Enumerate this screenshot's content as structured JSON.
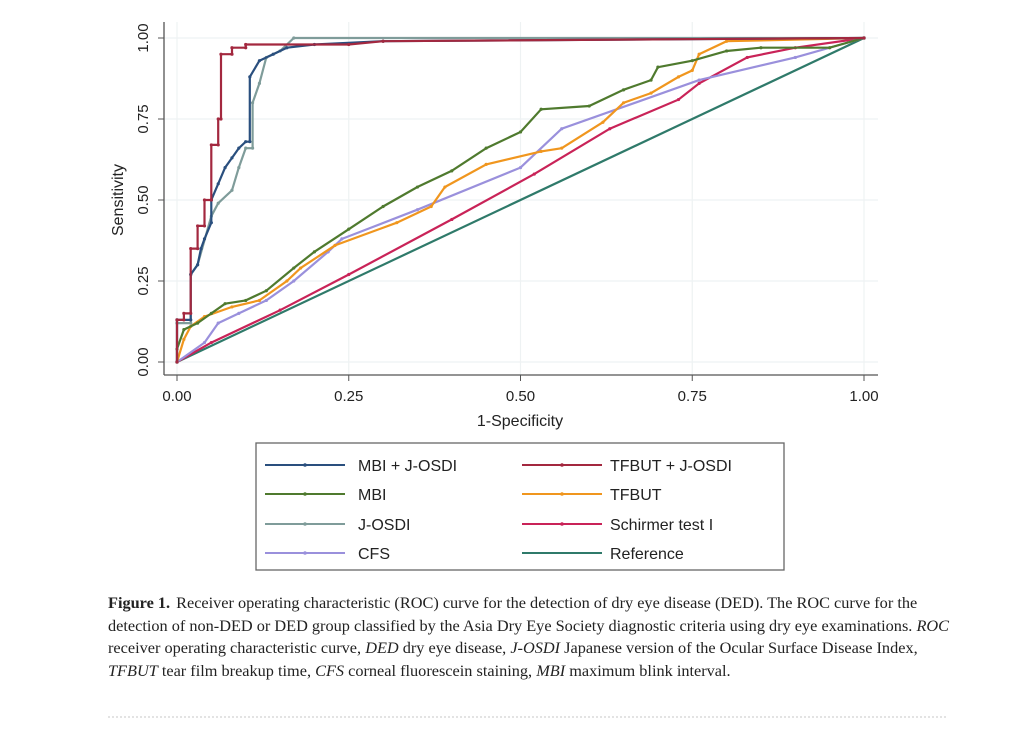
{
  "chart_data": {
    "type": "line",
    "xlabel": "1-Specificity",
    "ylabel": "Sensitivity",
    "xlim": [
      0,
      1
    ],
    "ylim": [
      0,
      1
    ],
    "xticks": [
      "0.00",
      "0.25",
      "0.50",
      "0.75",
      "1.00"
    ],
    "yticks": [
      "0.00",
      "0.25",
      "0.50",
      "0.75",
      "1.00"
    ],
    "grid": true,
    "legend_position": "bottom",
    "series": [
      {
        "name": "MBI + J-OSDI",
        "color": "#2a4f7e",
        "points": [
          [
            0,
            0
          ],
          [
            0,
            0.13
          ],
          [
            0.02,
            0.13
          ],
          [
            0.02,
            0.27
          ],
          [
            0.03,
            0.3
          ],
          [
            0.035,
            0.35
          ],
          [
            0.04,
            0.38
          ],
          [
            0.05,
            0.43
          ],
          [
            0.05,
            0.5
          ],
          [
            0.06,
            0.55
          ],
          [
            0.07,
            0.6
          ],
          [
            0.08,
            0.63
          ],
          [
            0.09,
            0.66
          ],
          [
            0.1,
            0.68
          ],
          [
            0.106,
            0.68
          ],
          [
            0.106,
            0.88
          ],
          [
            0.12,
            0.93
          ],
          [
            0.14,
            0.95
          ],
          [
            0.16,
            0.97
          ],
          [
            0.2,
            0.98
          ],
          [
            0.3,
            0.99
          ],
          [
            1,
            1
          ]
        ]
      },
      {
        "name": "MBI",
        "color": "#4f7a2e",
        "points": [
          [
            0,
            0
          ],
          [
            0,
            0.04
          ],
          [
            0.01,
            0.1
          ],
          [
            0.03,
            0.12
          ],
          [
            0.05,
            0.15
          ],
          [
            0.07,
            0.18
          ],
          [
            0.1,
            0.19
          ],
          [
            0.13,
            0.22
          ],
          [
            0.17,
            0.29
          ],
          [
            0.2,
            0.34
          ],
          [
            0.25,
            0.41
          ],
          [
            0.3,
            0.48
          ],
          [
            0.35,
            0.54
          ],
          [
            0.4,
            0.59
          ],
          [
            0.45,
            0.66
          ],
          [
            0.5,
            0.71
          ],
          [
            0.53,
            0.78
          ],
          [
            0.6,
            0.79
          ],
          [
            0.65,
            0.84
          ],
          [
            0.69,
            0.87
          ],
          [
            0.7,
            0.91
          ],
          [
            0.75,
            0.93
          ],
          [
            0.8,
            0.96
          ],
          [
            0.85,
            0.97
          ],
          [
            0.95,
            0.97
          ],
          [
            1,
            1
          ]
        ]
      },
      {
        "name": "J-OSDI",
        "color": "#7f9c9a",
        "points": [
          [
            0,
            0
          ],
          [
            0,
            0.12
          ],
          [
            0.02,
            0.12
          ],
          [
            0.02,
            0.27
          ],
          [
            0.03,
            0.3
          ],
          [
            0.05,
            0.45
          ],
          [
            0.06,
            0.49
          ],
          [
            0.08,
            0.53
          ],
          [
            0.09,
            0.6
          ],
          [
            0.1,
            0.66
          ],
          [
            0.11,
            0.66
          ],
          [
            0.11,
            0.8
          ],
          [
            0.12,
            0.86
          ],
          [
            0.13,
            0.94
          ],
          [
            0.15,
            0.96
          ],
          [
            0.17,
            1
          ],
          [
            1,
            1
          ]
        ]
      },
      {
        "name": "CFS",
        "color": "#9a90dc",
        "points": [
          [
            0,
            0
          ],
          [
            0.04,
            0.06
          ],
          [
            0.06,
            0.12
          ],
          [
            0.09,
            0.15
          ],
          [
            0.13,
            0.19
          ],
          [
            0.17,
            0.25
          ],
          [
            0.22,
            0.34
          ],
          [
            0.24,
            0.38
          ],
          [
            0.35,
            0.47
          ],
          [
            0.5,
            0.6
          ],
          [
            0.56,
            0.72
          ],
          [
            0.76,
            0.87
          ],
          [
            0.9,
            0.94
          ],
          [
            1,
            1
          ]
        ]
      },
      {
        "name": "TFBUT + J-OSDI",
        "color": "#a3283f",
        "points": [
          [
            0,
            0
          ],
          [
            0,
            0.13
          ],
          [
            0.01,
            0.13
          ],
          [
            0.01,
            0.15
          ],
          [
            0.02,
            0.15
          ],
          [
            0.02,
            0.35
          ],
          [
            0.03,
            0.35
          ],
          [
            0.03,
            0.42
          ],
          [
            0.04,
            0.42
          ],
          [
            0.04,
            0.5
          ],
          [
            0.05,
            0.5
          ],
          [
            0.05,
            0.67
          ],
          [
            0.06,
            0.67
          ],
          [
            0.06,
            0.75
          ],
          [
            0.064,
            0.75
          ],
          [
            0.064,
            0.95
          ],
          [
            0.08,
            0.95
          ],
          [
            0.08,
            0.97
          ],
          [
            0.1,
            0.97
          ],
          [
            0.1,
            0.98
          ],
          [
            0.25,
            0.98
          ],
          [
            0.3,
            0.99
          ],
          [
            1,
            1
          ]
        ]
      },
      {
        "name": "TFBUT",
        "color": "#f0961e",
        "points": [
          [
            0,
            0
          ],
          [
            0.01,
            0.07
          ],
          [
            0.02,
            0.11
          ],
          [
            0.04,
            0.14
          ],
          [
            0.08,
            0.17
          ],
          [
            0.12,
            0.19
          ],
          [
            0.16,
            0.25
          ],
          [
            0.18,
            0.29
          ],
          [
            0.23,
            0.36
          ],
          [
            0.32,
            0.43
          ],
          [
            0.37,
            0.48
          ],
          [
            0.39,
            0.54
          ],
          [
            0.45,
            0.61
          ],
          [
            0.53,
            0.65
          ],
          [
            0.56,
            0.66
          ],
          [
            0.62,
            0.74
          ],
          [
            0.65,
            0.8
          ],
          [
            0.69,
            0.83
          ],
          [
            0.73,
            0.88
          ],
          [
            0.75,
            0.9
          ],
          [
            0.76,
            0.95
          ],
          [
            0.8,
            0.99
          ],
          [
            1,
            1
          ]
        ]
      },
      {
        "name": "Schirmer test I",
        "color": "#c92358",
        "points": [
          [
            0,
            0
          ],
          [
            0.05,
            0.06
          ],
          [
            0.15,
            0.16
          ],
          [
            0.25,
            0.27
          ],
          [
            0.4,
            0.44
          ],
          [
            0.52,
            0.58
          ],
          [
            0.63,
            0.72
          ],
          [
            0.73,
            0.81
          ],
          [
            0.76,
            0.86
          ],
          [
            0.83,
            0.94
          ],
          [
            0.9,
            0.97
          ],
          [
            1,
            1
          ]
        ]
      },
      {
        "name": "Reference",
        "color": "#2f7a6a",
        "points": [
          [
            0,
            0
          ],
          [
            1,
            1
          ]
        ]
      }
    ]
  },
  "caption": {
    "label": "Figure 1.",
    "segments": [
      {
        "text": "Receiver operating characteristic (ROC) curve for the detection of dry eye disease (DED). The ROC curve for the detection of non-DED or DED group classified by the Asia Dry Eye Society diagnostic criteria using dry eye examinations. ",
        "italic": false
      },
      {
        "text": "ROC",
        "italic": true
      },
      {
        "text": " receiver operating characteristic curve, ",
        "italic": false
      },
      {
        "text": "DED",
        "italic": true
      },
      {
        "text": " dry eye disease, ",
        "italic": false
      },
      {
        "text": "J-OSDI",
        "italic": true
      },
      {
        "text": " Japanese version of the Ocular Surface Disease Index, ",
        "italic": false
      },
      {
        "text": "TFBUT",
        "italic": true
      },
      {
        "text": " tear film breakup time, ",
        "italic": false
      },
      {
        "text": "CFS",
        "italic": true
      },
      {
        "text": " corneal fluorescein staining, ",
        "italic": false
      },
      {
        "text": "MBI",
        "italic": true
      },
      {
        "text": " maximum blink interval.",
        "italic": false
      }
    ]
  }
}
